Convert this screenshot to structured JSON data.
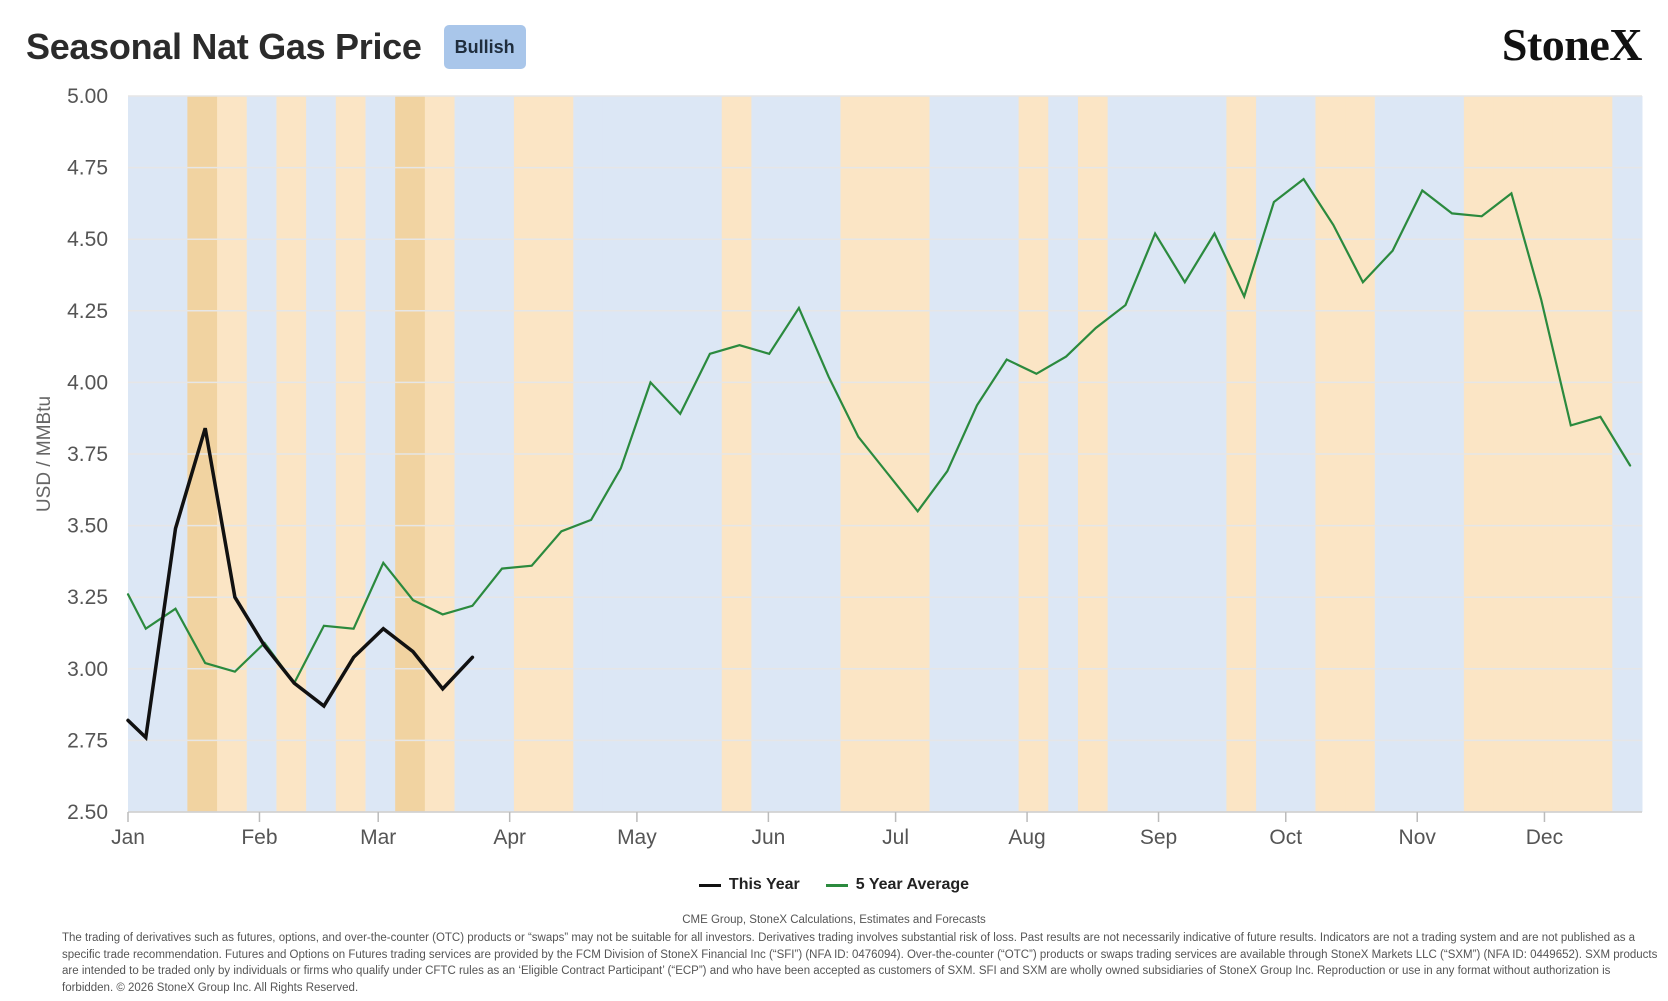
{
  "header": {
    "title": "Seasonal Nat Gas Price",
    "badge": "Bullish",
    "logo": "StoneX"
  },
  "colors": {
    "band_bull": "#dce7f5",
    "band_bear": "#fbe5c5",
    "band_dark": "#f1d3a1",
    "this_year": "#111111",
    "five_year": "#2b8a3e"
  },
  "chart_data": {
    "type": "line",
    "title": "Seasonal Nat Gas Price",
    "ylabel": "USD / MMBtu",
    "ylim": [
      2.5,
      5.0
    ],
    "yticks": [
      "5.00",
      "4.75",
      "4.50",
      "4.25",
      "4.00",
      "3.75",
      "3.50",
      "3.25",
      "3.00",
      "2.75",
      "2.50"
    ],
    "month_labels": [
      "Jan",
      "Feb",
      "Mar",
      "Apr",
      "May",
      "Jun",
      "Jul",
      "Aug",
      "Sep",
      "Oct",
      "Nov",
      "Dec"
    ],
    "x_unit": "week of year (1 = first week of Jan)",
    "x_range": [
      1,
      52
    ],
    "series": [
      {
        "name": "This Year",
        "color": "#111111",
        "x": [
          1,
          1.6,
          2.6,
          3.6,
          4.6,
          5.6,
          6.6,
          7.6,
          8.6,
          9.6,
          10.6,
          11.6,
          12.6
        ],
        "values": [
          2.82,
          2.76,
          3.49,
          3.84,
          3.25,
          3.08,
          2.95,
          2.87,
          3.04,
          3.14,
          3.06,
          2.93,
          3.04
        ]
      },
      {
        "name": "5 Year Average",
        "color": "#2b8a3e",
        "x": [
          1,
          1.6,
          2.6,
          3.6,
          4.6,
          5.6,
          6.6,
          7.6,
          8.6,
          9.6,
          10.6,
          11.6,
          12.6,
          13.6,
          14.6,
          15.6,
          16.6,
          17.6,
          18.6,
          19.6,
          20.6,
          21.6,
          22.6,
          23.6,
          24.6,
          25.6,
          26.6,
          27.6,
          28.6,
          29.6,
          30.6,
          31.6,
          32.6,
          33.6,
          34.6,
          35.6,
          36.6,
          37.6,
          38.6,
          39.6,
          40.6,
          41.6,
          42.6,
          43.6,
          44.6,
          45.6,
          46.6,
          47.6,
          48.6,
          49.6,
          50.6,
          51.6
        ],
        "values": [
          3.26,
          3.14,
          3.21,
          3.02,
          2.99,
          3.09,
          2.95,
          3.15,
          3.14,
          3.37,
          3.24,
          3.19,
          3.22,
          3.35,
          3.36,
          3.48,
          3.52,
          3.7,
          4.0,
          3.89,
          4.1,
          4.13,
          4.1,
          4.26,
          4.02,
          3.81,
          3.68,
          3.55,
          3.69,
          3.92,
          4.08,
          4.03,
          4.09,
          4.19,
          4.27,
          4.52,
          4.35,
          4.52,
          4.3,
          4.63,
          4.71,
          4.55,
          4.35,
          4.46,
          4.67,
          4.59,
          4.58,
          4.66,
          4.29,
          3.85,
          3.88,
          3.71
        ]
      }
    ],
    "bands_note": "weekly shading: blue = bullish seasonal weeks, orange = bearish seasonal weeks, darker orange = strongest weeks",
    "bands": [
      "bull",
      "bull",
      "dark",
      "bear",
      "bull",
      "bear",
      "bull",
      "bear",
      "bull",
      "dark",
      "bear",
      "bull",
      "bull",
      "bear",
      "bear",
      "bull",
      "bull",
      "bull",
      "bull",
      "bull",
      "bear",
      "bull",
      "bull",
      "bull",
      "bear",
      "bear",
      "bear",
      "bull",
      "bull",
      "bull",
      "bear",
      "bull",
      "bear",
      "bull",
      "bull",
      "bull",
      "bull",
      "bear",
      "bull",
      "bull",
      "bear",
      "bear",
      "bull",
      "bull",
      "bull",
      "bear",
      "bear",
      "bear",
      "bear",
      "bear",
      "bull"
    ],
    "legend": [
      "This Year",
      "5 Year Average"
    ],
    "legend_position": "bottom-center",
    "grid": true
  },
  "footer": {
    "source": "CME Group, StoneX Calculations, Estimates and Forecasts",
    "disclaimer": "The trading of derivatives such as futures, options, and over-the-counter (OTC) products or “swaps” may not be suitable for all investors. Derivatives trading involves substantial risk of loss. Past results are not necessarily indicative of future results. Indicators are not a trading system and are not published as a specific trade recommendation. Futures and Options on Futures trading services are provided by the FCM Division of StoneX Financial Inc (“SFI”) (NFA ID: 0476094). Over-the-counter (“OTC”) products or swaps trading services are available through StoneX Markets LLC (“SXM”) (NFA ID: 0449652). SXM products are intended to be traded only by individuals or firms who qualify under CFTC rules as an ‘Eligible Contract Participant’ (“ECP”) and who have been accepted as customers of SXM. SFI and SXM are wholly owned subsidiaries of StoneX Group Inc. Reproduction or use in any format without authorization is forbidden. © 2026 StoneX Group Inc. All Rights Reserved."
  }
}
